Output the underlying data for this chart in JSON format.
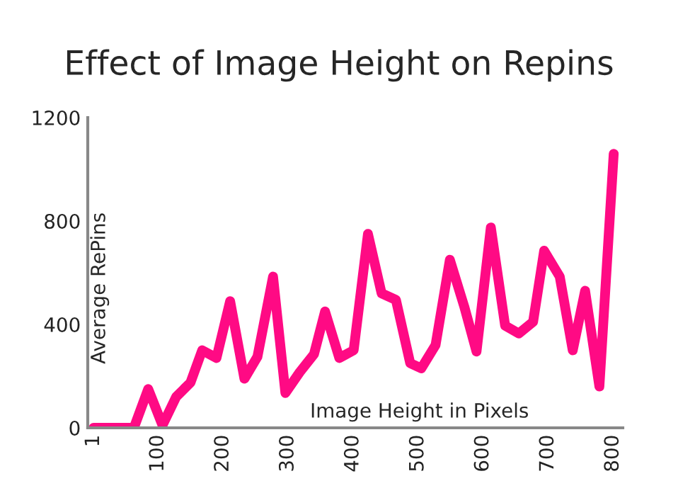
{
  "chart_data": {
    "type": "line",
    "title": "Effect of Image Height on Repins",
    "xlabel": "Image Height in Pixels",
    "ylabel": "Average RePins",
    "x": [
      1,
      63,
      85,
      107,
      128,
      150,
      168,
      190,
      211,
      233,
      253,
      277,
      296,
      318,
      340,
      357,
      379,
      401,
      423,
      444,
      466,
      488,
      505,
      527,
      549,
      571,
      590,
      612,
      634,
      655,
      677,
      694,
      718,
      738,
      757,
      779,
      801
    ],
    "series": [
      {
        "color": "#ff0a84",
        "values": [
          0,
          0,
          150,
          10,
          120,
          175,
          300,
          270,
          490,
          190,
          275,
          585,
          135,
          215,
          285,
          450,
          270,
          300,
          750,
          520,
          495,
          250,
          230,
          320,
          650,
          470,
          295,
          775,
          395,
          365,
          410,
          685,
          585,
          300,
          530,
          160,
          1060
        ]
      }
    ],
    "xlim": [
      -8,
      815
    ],
    "ylim": [
      0,
      1200
    ],
    "xticks": [
      1,
      100,
      200,
      300,
      400,
      500,
      600,
      700,
      800
    ],
    "yticks": [
      0,
      400,
      800,
      1200
    ],
    "grid": false,
    "legend": false,
    "marker": "none",
    "line_style": "solid"
  }
}
